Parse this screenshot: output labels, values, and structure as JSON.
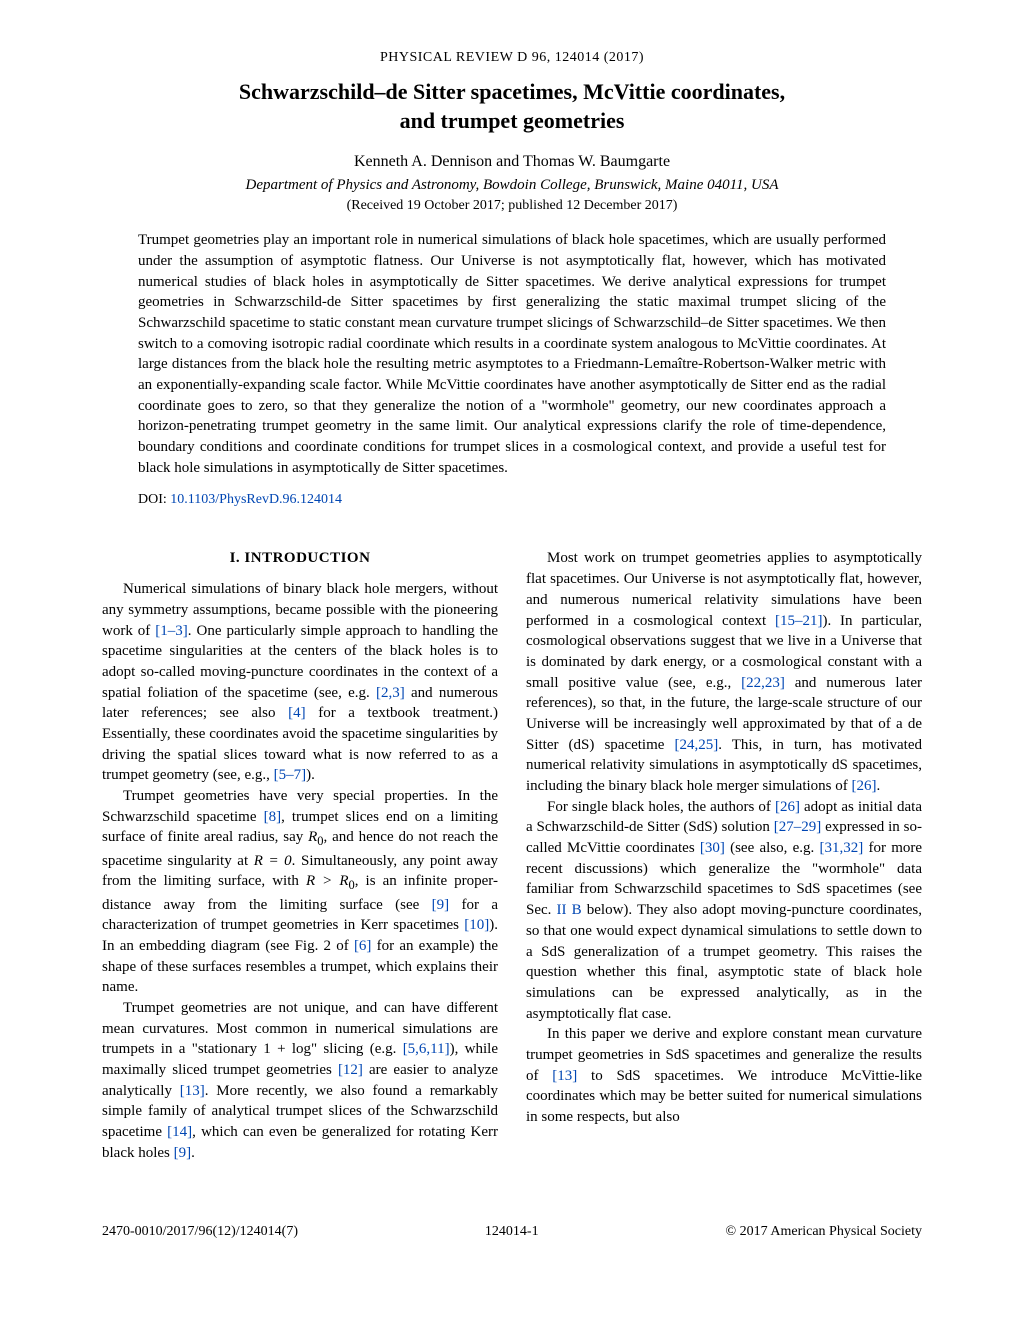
{
  "journal_ref": "PHYSICAL REVIEW D 96, 124014 (2017)",
  "title_l1": "Schwarzschild–de Sitter spacetimes, McVittie coordinates,",
  "title_l2": "and trumpet geometries",
  "authors": "Kenneth A. Dennison and Thomas W. Baumgarte",
  "affiliation": "Department of Physics and Astronomy, Bowdoin College, Brunswick, Maine 04011, USA",
  "dates": "(Received 19 October 2017; published 12 December 2017)",
  "abstract": "Trumpet geometries play an important role in numerical simulations of black hole spacetimes, which are usually performed under the assumption of asymptotic flatness. Our Universe is not asymptotically flat, however, which has motivated numerical studies of black holes in asymptotically de Sitter spacetimes. We derive analytical expressions for trumpet geometries in Schwarzschild-de Sitter spacetimes by first generalizing the static maximal trumpet slicing of the Schwarzschild spacetime to static constant mean curvature trumpet slicings of Schwarzschild–de Sitter spacetimes. We then switch to a comoving isotropic radial coordinate which results in a coordinate system analogous to McVittie coordinates. At large distances from the black hole the resulting metric asymptotes to a Friedmann-Lemaître-Robertson-Walker metric with an exponentially-expanding scale factor. While McVittie coordinates have another asymptotically de Sitter end as the radial coordinate goes to zero, so that they generalize the notion of a \"wormhole\" geometry, our new coordinates approach a horizon-penetrating trumpet geometry in the same limit. Our analytical expressions clarify the role of time-dependence, boundary conditions and coordinate conditions for trumpet slices in a cosmological context, and provide a useful test for black hole simulations in asymptotically de Sitter spacetimes.",
  "doi_label": "DOI: ",
  "doi_link": "10.1103/PhysRevD.96.124014",
  "section1_heading": "I. INTRODUCTION",
  "p1a": "Numerical simulations of binary black hole mergers, without any symmetry assumptions, became possible with the pioneering work of ",
  "p1_ref1": "[1–3]",
  "p1b": ". One particularly simple approach to handling the spacetime singularities at the centers of the black holes is to adopt so-called moving-puncture coordinates in the context of a spatial foliation of the spacetime (see, e.g. ",
  "p1_ref2": "[2,3]",
  "p1c": " and numerous later references; see also ",
  "p1_ref3": "[4]",
  "p1d": " for a textbook treatment.) Essentially, these coordinates avoid the spacetime singularities by driving the spatial slices toward what is now referred to as a trumpet geometry (see, e.g., ",
  "p1_ref4": "[5–7]",
  "p1e": ").",
  "p2a": "Trumpet geometries have very special properties. In the Schwarzschild spacetime ",
  "p2_ref1": "[8]",
  "p2b": ", trumpet slices end on a limiting surface of finite areal radius, say ",
  "p2_R0": "R",
  "p2_R0sub": "0",
  "p2c": ", and hence do not reach the spacetime singularity at ",
  "p2_Req": "R = 0",
  "p2d": ". Simultaneously, any point away from the limiting surface, with ",
  "p2_RgtR0": "R > R",
  "p2_RgtR0sub": "0",
  "p2e": ", is an infinite proper-distance away from the limiting surface (see ",
  "p2_ref2": "[9]",
  "p2f": " for a characterization of trumpet geometries in Kerr spacetimes ",
  "p2_ref3": "[10]",
  "p2g": "). In an embedding diagram (see Fig. 2 of ",
  "p2_ref4": "[6]",
  "p2h": " for an example) the shape of these surfaces resembles a trumpet, which explains their name.",
  "p3a": "Trumpet geometries are not unique, and can have different mean curvatures. Most common in numerical simulations are trumpets in a \"stationary 1 + log\" slicing (e.g. ",
  "p3_ref1": "[5,6,11]",
  "p3b": "), while maximally sliced trumpet geometries ",
  "p3_ref2": "[12]",
  "p3c": " are easier to analyze analytically ",
  "p3_ref3": "[13]",
  "p3d": ". More recently, we also found a remarkably simple family of analytical trumpet slices of the Schwarzschild spacetime ",
  "p3_ref4": "[14]",
  "p3e": ", which can even be generalized for rotating Kerr black holes ",
  "p3_ref5": "[9]",
  "p3f": ".",
  "p4a": "Most work on trumpet geometries applies to asymptotically flat spacetimes. Our Universe is not asymptotically flat, however, and numerous numerical relativity simulations have been performed in a cosmological context ",
  "p4_ref1": "[15–21]",
  "p4b": "). In particular, cosmological observations suggest that we live in a Universe that is dominated by dark energy, or a cosmological constant with a small positive value (see, e.g., ",
  "p4_ref2": "[22,23]",
  "p4c": " and numerous later references), so that, in the future, the large-scale structure of our Universe will be increasingly well approximated by that of a de Sitter (dS) spacetime ",
  "p4_ref3": "[24,25]",
  "p4d": ". This, in turn, has motivated numerical relativity simulations in asymptotically dS spacetimes, including the binary black hole merger simulations of ",
  "p4_ref4": "[26]",
  "p4e": ".",
  "p5a": "For single black holes, the authors of ",
  "p5_ref1": "[26]",
  "p5b": " adopt as initial data a Schwarzschild-de Sitter (SdS) solution ",
  "p5_ref2": "[27–29]",
  "p5c": " expressed in so-called McVittie coordinates ",
  "p5_ref3": "[30]",
  "p5d": " (see also, e.g. ",
  "p5_ref4": "[31,32]",
  "p5e": " for more recent discussions) which generalize the \"wormhole\" data familiar from Schwarzschild spacetimes to SdS spacetimes (see Sec. ",
  "p5_ref5": "II B",
  "p5f": " below). They also adopt moving-puncture coordinates, so that one would expect dynamical simulations to settle down to a SdS generalization of a trumpet geometry. This raises the question whether this final, asymptotic state of black hole simulations can be expressed analytically, as in the asymptotically flat case.",
  "p6a": "In this paper we derive and explore constant mean curvature trumpet geometries in SdS spacetimes and generalize the results of ",
  "p6_ref1": "[13]",
  "p6b": " to SdS spacetimes. We introduce McVittie-like coordinates which may be better suited for numerical simulations in some respects, but also",
  "footer_left": "2470-0010/2017/96(12)/124014(7)",
  "footer_center": "124014-1",
  "footer_right": "© 2017 American Physical Society"
}
